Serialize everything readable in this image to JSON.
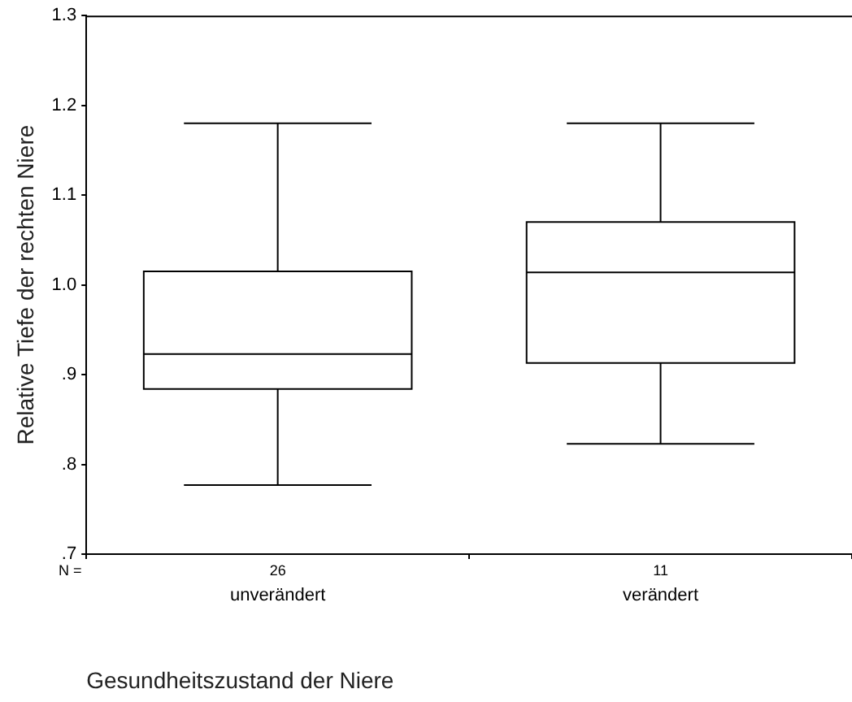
{
  "chart_data": {
    "type": "box",
    "xlabel": "Gesundheitszustand der Niere",
    "ylabel": "Relative Tiefe der rechten Niere",
    "categories": [
      "unverändert",
      "verändert"
    ],
    "boxes": [
      {
        "low": 0.777,
        "q1": 0.884,
        "median": 0.923,
        "q3": 1.015,
        "high": 1.18
      },
      {
        "low": 0.823,
        "q1": 0.913,
        "median": 1.014,
        "q3": 1.07,
        "high": 1.18
      }
    ],
    "ylim": [
      0.7,
      1.3
    ],
    "yticks": [
      {
        "value": 0.7,
        "label": ".7"
      },
      {
        "value": 0.8,
        "label": ".8"
      },
      {
        "value": 0.9,
        "label": ".9"
      },
      {
        "value": 1.0,
        "label": "1.0"
      },
      1.1,
      1.2,
      1.3
    ],
    "annotations": [
      "N =",
      "26",
      "11"
    ]
  }
}
